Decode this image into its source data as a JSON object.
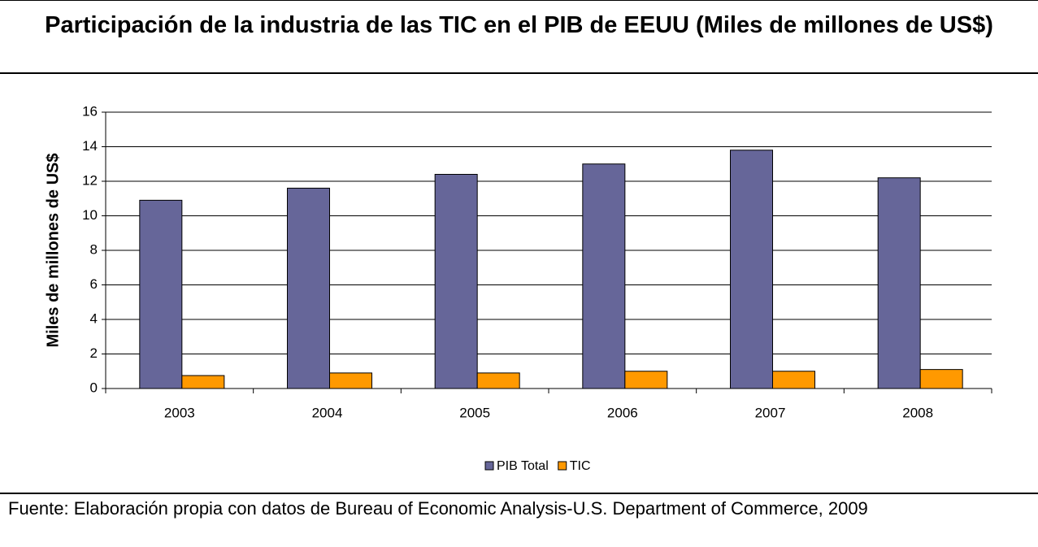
{
  "chart_data": {
    "type": "bar",
    "title": "Participación de la industria de las TIC en el PIB de EEUU (Miles de millones de US$)",
    "y_label": "Miles de millones de US$",
    "categories": [
      "2003",
      "2004",
      "2005",
      "2006",
      "2007",
      "2008"
    ],
    "series": [
      {
        "name": "PIB Total",
        "color": "#666699",
        "values": [
          10.9,
          11.6,
          12.4,
          13.0,
          13.8,
          12.2
        ]
      },
      {
        "name": "TIC",
        "color": "#FF9900",
        "values": [
          0.75,
          0.9,
          0.9,
          1.0,
          1.0,
          1.1
        ]
      }
    ],
    "ylim": [
      0,
      16
    ],
    "yticks": [
      0,
      2,
      4,
      6,
      8,
      10,
      12,
      14,
      16
    ],
    "grid": true,
    "legend": "bottom",
    "source": "Fuente: Elaboración propia con datos de Bureau of Economic Analysis-U.S. Department of Commerce, 2009"
  }
}
